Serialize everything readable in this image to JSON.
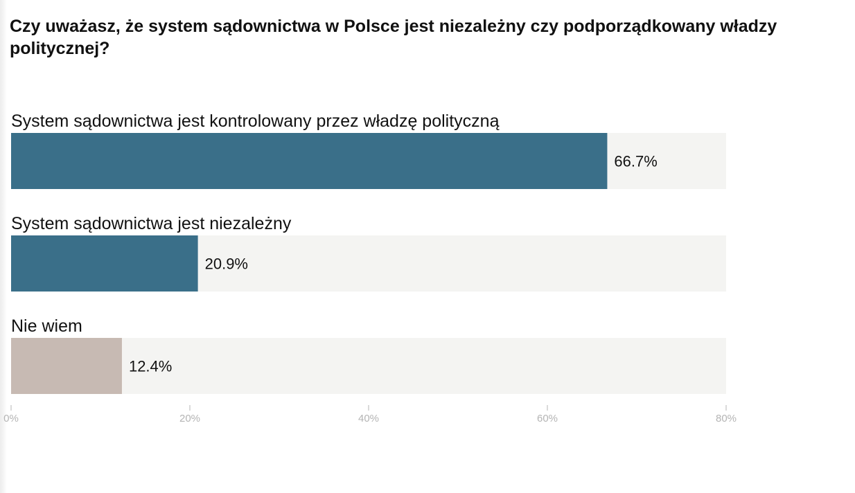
{
  "title": "Czy uważasz, że system sądownictwa w Polsce jest niezależny czy podporządkowany władzy politycznej?",
  "colors": {
    "primary_bar": "#3a6f89",
    "secondary_bar": "#c7bab3",
    "track": "#f4f4f2",
    "tick": "#b4b4b4"
  },
  "chart_data": {
    "type": "bar",
    "orientation": "horizontal",
    "title": "Czy uważasz, że system sądownictwa w Polsce jest niezależny czy podporządkowany władzy politycznej?",
    "categories": [
      "System sądownictwa jest kontrolowany przez władzę polityczną",
      "System sądownictwa jest niezależny",
      "Nie wiem"
    ],
    "values": [
      66.7,
      20.9,
      12.4
    ],
    "value_labels": [
      "66.7%",
      "20.9%",
      "12.4%"
    ],
    "bar_colors": [
      "#3a6f89",
      "#3a6f89",
      "#c7bab3"
    ],
    "xlim": [
      0,
      80
    ],
    "x_ticks": [
      0,
      20,
      40,
      60,
      80
    ],
    "x_tick_labels": [
      "0%",
      "20%",
      "40%",
      "60%",
      "80%"
    ],
    "grid": false,
    "legend": "none"
  }
}
